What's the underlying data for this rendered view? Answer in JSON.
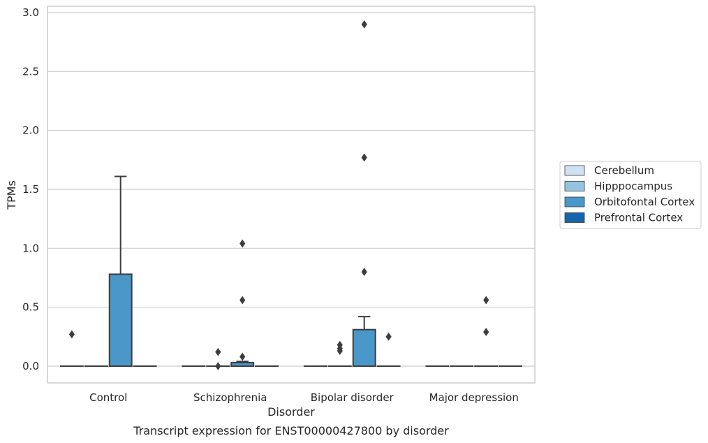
{
  "chart_data": {
    "type": "box",
    "xlabel": "Disorder",
    "ylabel": "TPMs",
    "caption": "Transcript expression for ENST00000427800 by disorder",
    "categories": [
      "Control",
      "Schizophrenia",
      "Bipolar disorder",
      "Major depression"
    ],
    "ylim": [
      -0.14,
      3.05
    ],
    "yticks": [
      0.0,
      0.5,
      1.0,
      1.5,
      2.0,
      2.5,
      3.0
    ],
    "ytick_labels": [
      "0.0",
      "0.5",
      "1.0",
      "1.5",
      "2.0",
      "2.5",
      "3.0"
    ],
    "grid": "horizontal",
    "legend_position": "right",
    "series": [
      {
        "name": "Cerebellum",
        "color": "#d0e1f2",
        "boxes": [
          {
            "category": "Control",
            "q1": 0,
            "median": 0,
            "q3": 0,
            "whisker_low": 0,
            "whisker_high": 0,
            "outliers": [
              0.27
            ]
          },
          {
            "category": "Schizophrenia",
            "q1": 0,
            "median": 0,
            "q3": 0,
            "whisker_low": 0,
            "whisker_high": 0,
            "outliers": []
          },
          {
            "category": "Bipolar disorder",
            "q1": 0,
            "median": 0,
            "q3": 0,
            "whisker_low": 0,
            "whisker_high": 0,
            "outliers": []
          },
          {
            "category": "Major depression",
            "q1": 0,
            "median": 0,
            "q3": 0,
            "whisker_low": 0,
            "whisker_high": 0,
            "outliers": []
          }
        ]
      },
      {
        "name": "Hipppocampus",
        "color": "#94c4df",
        "boxes": [
          {
            "category": "Control",
            "q1": 0,
            "median": 0,
            "q3": 0,
            "whisker_low": 0,
            "whisker_high": 0,
            "outliers": []
          },
          {
            "category": "Schizophrenia",
            "q1": 0,
            "median": 0,
            "q3": 0,
            "whisker_low": 0,
            "whisker_high": 0,
            "outliers": [
              0.0,
              0.12
            ]
          },
          {
            "category": "Bipolar disorder",
            "q1": 0,
            "median": 0,
            "q3": 0,
            "whisker_low": 0,
            "whisker_high": 0,
            "outliers": [
              0.13,
              0.15,
              0.18
            ]
          },
          {
            "category": "Major depression",
            "q1": 0,
            "median": 0,
            "q3": 0,
            "whisker_low": 0,
            "whisker_high": 0,
            "outliers": []
          }
        ]
      },
      {
        "name": "Orbitofontal Cortex",
        "color": "#4a98c9",
        "boxes": [
          {
            "category": "Control",
            "q1": 0,
            "median": 0,
            "q3": 0.78,
            "whisker_low": 0,
            "whisker_high": 1.61,
            "outliers": []
          },
          {
            "category": "Schizophrenia",
            "q1": 0,
            "median": 0,
            "q3": 0.03,
            "whisker_low": 0,
            "whisker_high": 0.04,
            "outliers": [
              0.08,
              0.56,
              1.04
            ]
          },
          {
            "category": "Bipolar disorder",
            "q1": 0,
            "median": 0,
            "q3": 0.31,
            "whisker_low": 0,
            "whisker_high": 0.42,
            "outliers": [
              0.8,
              1.77,
              2.9
            ]
          },
          {
            "category": "Major depression",
            "q1": 0,
            "median": 0,
            "q3": 0,
            "whisker_low": 0,
            "whisker_high": 0,
            "outliers": [
              0.29,
              0.56
            ]
          }
        ]
      },
      {
        "name": "Prefrontal Cortex",
        "color": "#1764ab",
        "boxes": [
          {
            "category": "Control",
            "q1": 0,
            "median": 0,
            "q3": 0,
            "whisker_low": 0,
            "whisker_high": 0,
            "outliers": []
          },
          {
            "category": "Schizophrenia",
            "q1": 0,
            "median": 0,
            "q3": 0,
            "whisker_low": 0,
            "whisker_high": 0,
            "outliers": []
          },
          {
            "category": "Bipolar disorder",
            "q1": 0,
            "median": 0,
            "q3": 0,
            "whisker_low": 0,
            "whisker_high": 0,
            "outliers": [
              0.25
            ]
          },
          {
            "category": "Major depression",
            "q1": 0,
            "median": 0,
            "q3": 0,
            "whisker_low": 0,
            "whisker_high": 0,
            "outliers": []
          }
        ]
      }
    ]
  }
}
